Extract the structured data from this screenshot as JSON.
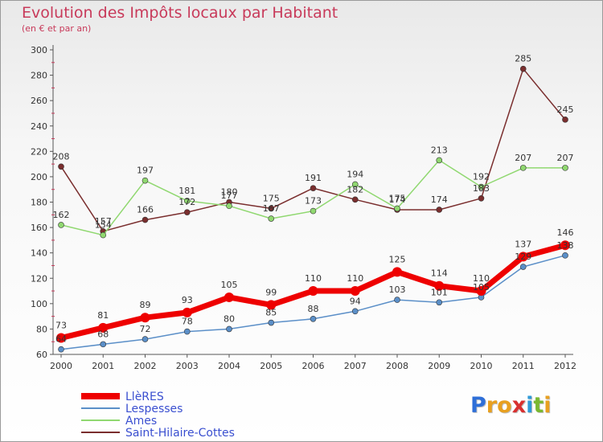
{
  "title": "Evolution des Impôts locaux par Habitant",
  "subtitle": "(en € et par an)",
  "logo": {
    "text": "Proxiti",
    "letters": [
      "P",
      "r",
      "o",
      "x",
      "i",
      "t",
      "i"
    ],
    "colors": [
      "#2e6fd8",
      "#e8a020",
      "#e8a020",
      "#d83030",
      "#2e9ad8",
      "#7ab830",
      "#e8a020"
    ]
  },
  "chart_data": {
    "type": "line",
    "title": "Evolution des Impôts locaux par Habitant",
    "subtitle": "(en € et par an)",
    "x": [
      "2000",
      "2001",
      "2002",
      "2003",
      "2004",
      "2005",
      "2006",
      "2007",
      "2008",
      "2009",
      "2010",
      "2011",
      "2012"
    ],
    "ylim": [
      60,
      300
    ],
    "yticks": [
      60,
      80,
      100,
      120,
      140,
      160,
      180,
      200,
      220,
      240,
      260,
      280,
      300
    ],
    "grid": false,
    "legend_position": "bottom-left",
    "series": [
      {
        "name": "LlèRES",
        "color": "#ee0000",
        "values": [
          73,
          81,
          89,
          93,
          105,
          99,
          110,
          110,
          125,
          114,
          110,
          137,
          146
        ]
      },
      {
        "name": "Lespesses",
        "color": "#5b8fc8",
        "values": [
          64,
          68,
          72,
          78,
          80,
          85,
          88,
          94,
          103,
          101,
          105,
          129,
          138
        ]
      },
      {
        "name": "Ames",
        "color": "#90d870",
        "values": [
          162,
          154,
          197,
          181,
          177,
          167,
          173,
          194,
          175,
          213,
          192,
          207,
          207
        ]
      },
      {
        "name": "Saint-Hilaire-Cottes",
        "color": "#7a2e2e",
        "values": [
          208,
          157,
          166,
          172,
          180,
          175,
          191,
          182,
          174,
          174,
          183,
          285,
          245
        ]
      }
    ]
  }
}
